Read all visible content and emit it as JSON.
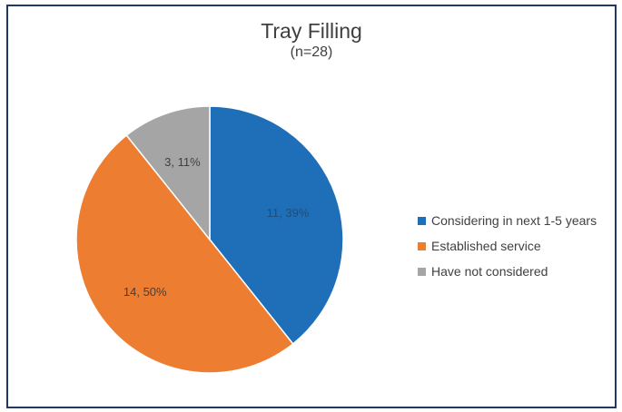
{
  "chart_data": {
    "type": "pie",
    "title": "Tray Filling",
    "subtitle": "(n=28)",
    "categories": [
      "Considering in next 1-5 years",
      "Established service",
      "Have not considered"
    ],
    "values": [
      11,
      14,
      3
    ],
    "percents": [
      39,
      50,
      11
    ],
    "data_labels": [
      "11, 39%",
      "14, 50%",
      "3, 11%"
    ],
    "colors": [
      "#1f6fb8",
      "#ed7d31",
      "#a5a5a5"
    ],
    "legend_position": "right",
    "start_angle": "12 o'clock, clockwise"
  }
}
